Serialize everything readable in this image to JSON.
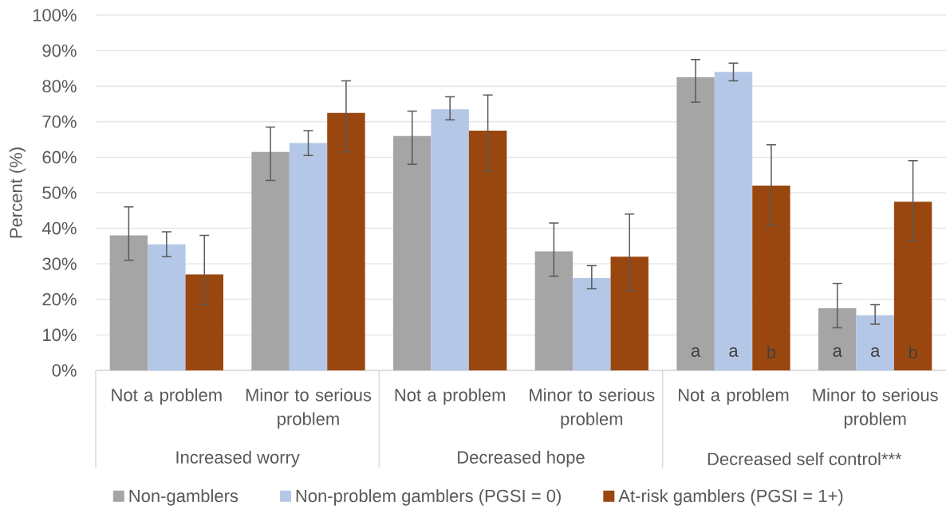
{
  "chart_data": {
    "type": "bar",
    "ylabel": "Percent (%)",
    "categories": [
      "Not a problem",
      "Minor to serious problem",
      "Not a problem",
      "Minor to serious problem",
      "Not a problem",
      "Minor to serious problem"
    ],
    "series": [
      {
        "name": "Non-gamblers",
        "color": "#a5a5a5",
        "values": [
          38,
          61.5,
          66,
          33.5,
          82.5,
          17.5
        ],
        "errors": [
          [
            31,
            46
          ],
          [
            53.5,
            68.5
          ],
          [
            58,
            73
          ],
          [
            26.5,
            41.5
          ],
          [
            75.5,
            87.5
          ],
          [
            12,
            24.5
          ]
        ],
        "value_labels": [
          null,
          null,
          null,
          null,
          "a",
          "a"
        ]
      },
      {
        "name": "Non-problem gamblers (PGSI = 0)",
        "color": "#b4c7e7",
        "values": [
          35.5,
          64,
          73.5,
          26,
          84,
          15.5
        ],
        "errors": [
          [
            32,
            39
          ],
          [
            60.5,
            67.5
          ],
          [
            70.5,
            77
          ],
          [
            23,
            29.5
          ],
          [
            81.5,
            86.5
          ],
          [
            13,
            18.5
          ]
        ],
        "value_labels": [
          null,
          null,
          null,
          null,
          "a",
          "a"
        ]
      },
      {
        "name": "At-risk gamblers (PGSI = 1+)",
        "color": "#9a470f",
        "values": [
          27,
          72.5,
          67.5,
          32,
          52,
          47.5
        ],
        "errors": [
          [
            18.5,
            38
          ],
          [
            61.5,
            81.5
          ],
          [
            56,
            77.5
          ],
          [
            22.5,
            44
          ],
          [
            41,
            63.5
          ],
          [
            36.5,
            59
          ]
        ],
        "value_labels": [
          null,
          null,
          null,
          null,
          "b",
          "b"
        ]
      }
    ],
    "ylim": [
      0,
      100
    ],
    "yticks": [
      {
        "value": 0,
        "label": "0%"
      },
      {
        "value": 10,
        "label": "10%"
      },
      {
        "value": 20,
        "label": "20%"
      },
      {
        "value": 30,
        "label": "30%"
      },
      {
        "value": 40,
        "label": "40%"
      },
      {
        "value": 50,
        "label": "50%"
      },
      {
        "value": 60,
        "label": "60%"
      },
      {
        "value": 70,
        "label": "70%"
      },
      {
        "value": 80,
        "label": "80%"
      },
      {
        "value": 90,
        "label": "90%"
      },
      {
        "value": 100,
        "label": "100%"
      }
    ],
    "grid": "y",
    "legend": "bottom",
    "annotations": [
      "Increased worry",
      "Decreased hope",
      "Decreased self control***"
    ]
  }
}
